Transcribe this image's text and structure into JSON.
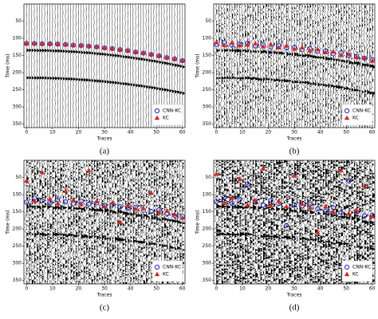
{
  "chart_data": [
    {
      "type": "scatter",
      "label": "(a)",
      "x_label": "Traces",
      "y_label": "Time (ms)",
      "xlim": [
        -1,
        61
      ],
      "ylim": [
        0,
        360
      ],
      "y_inverted": true,
      "xticks": [
        0,
        10,
        20,
        30,
        40,
        50,
        60
      ],
      "yticks": [
        50,
        100,
        150,
        200,
        250,
        300,
        350
      ],
      "legend": "lower right",
      "x": [
        0,
        3,
        6,
        9,
        12,
        15,
        18,
        21,
        24,
        27,
        30,
        33,
        36,
        39,
        42,
        45,
        48,
        51,
        54,
        57,
        60
      ],
      "series": [
        {
          "name": "CNN-KC",
          "color": "#2222cc",
          "marker": "circle",
          "values": [
            115,
            115,
            116,
            116,
            117,
            118,
            120,
            121,
            123,
            125,
            128,
            130,
            133,
            136,
            140,
            143,
            147,
            151,
            156,
            160,
            165
          ]
        },
        {
          "name": "KC",
          "color": "#dd2222",
          "marker": "triangle",
          "values": [
            115,
            115,
            116,
            116,
            117,
            118,
            120,
            121,
            123,
            125,
            128,
            130,
            133,
            136,
            140,
            143,
            147,
            151,
            156,
            160,
            165
          ]
        }
      ]
    },
    {
      "type": "scatter",
      "label": "(b)",
      "x_label": "Traces",
      "y_label": "Time (ms)",
      "xlim": [
        -1,
        61
      ],
      "ylim": [
        0,
        360
      ],
      "y_inverted": true,
      "xticks": [
        0,
        10,
        20,
        30,
        40,
        50,
        60
      ],
      "yticks": [
        50,
        100,
        150,
        200,
        250,
        300,
        350
      ],
      "legend": "lower right",
      "x": [
        0,
        3,
        6,
        9,
        12,
        15,
        18,
        21,
        24,
        27,
        30,
        33,
        36,
        39,
        42,
        45,
        48,
        51,
        54,
        57,
        60
      ],
      "series": [
        {
          "name": "CNN-KC",
          "color": "#2222cc",
          "marker": "circle",
          "values": [
            118,
            112,
            120,
            117,
            114,
            122,
            119,
            125,
            121,
            128,
            126,
            133,
            130,
            138,
            136,
            145,
            142,
            150,
            153,
            158,
            162
          ]
        },
        {
          "name": "KC",
          "color": "#dd2222",
          "marker": "triangle",
          "values": [
            112,
            120,
            113,
            121,
            119,
            115,
            124,
            118,
            127,
            122,
            131,
            127,
            136,
            132,
            141,
            139,
            149,
            146,
            155,
            157,
            166
          ]
        }
      ]
    },
    {
      "type": "scatter",
      "label": "(c)",
      "x_label": "Traces",
      "y_label": "Time (ms)",
      "xlim": [
        -1,
        61
      ],
      "ylim": [
        0,
        360
      ],
      "y_inverted": true,
      "xticks": [
        0,
        10,
        20,
        30,
        40,
        50,
        60
      ],
      "yticks": [
        50,
        100,
        150,
        200,
        250,
        300,
        350
      ],
      "legend": "lower right",
      "x": [
        0,
        3,
        6,
        9,
        12,
        15,
        18,
        21,
        24,
        27,
        30,
        33,
        36,
        39,
        42,
        45,
        48,
        51,
        54,
        57,
        60
      ],
      "series": [
        {
          "name": "CNN-KC",
          "color": "#2222cc",
          "marker": "circle",
          "values": [
            122,
            110,
            118,
            124,
            115,
            121,
            126,
            119,
            127,
            124,
            132,
            129,
            135,
            140,
            137,
            146,
            149,
            144,
            155,
            161,
            163
          ]
        },
        {
          "name": "KC",
          "color": "#dd2222",
          "marker": "triangle",
          "values": [
            60,
            118,
            35,
            112,
            126,
            90,
            116,
            128,
            30,
            120,
            135,
            124,
            180,
            131,
            142,
            140,
            95,
            152,
            148,
            158,
            168
          ]
        }
      ]
    },
    {
      "type": "scatter",
      "label": "(d)",
      "x_label": "Traces",
      "y_label": "Time (ms)",
      "xlim": [
        -1,
        61
      ],
      "ylim": [
        0,
        360
      ],
      "y_inverted": true,
      "xticks": [
        0,
        10,
        20,
        30,
        40,
        50,
        60
      ],
      "yticks": [
        50,
        100,
        150,
        200,
        250,
        300,
        350
      ],
      "legend": "lower right",
      "x": [
        0,
        3,
        6,
        9,
        12,
        15,
        18,
        21,
        24,
        27,
        30,
        33,
        36,
        39,
        42,
        45,
        48,
        51,
        54,
        57,
        60
      ],
      "series": [
        {
          "name": "CNN-KC",
          "color": "#2222cc",
          "marker": "circle",
          "values": [
            120,
            108,
            125,
            115,
            70,
            119,
            130,
            116,
            126,
            190,
            129,
            134,
            128,
            141,
            148,
            138,
            152,
            60,
            150,
            162,
            160
          ]
        },
        {
          "name": "KC",
          "color": "#dd2222",
          "marker": "triangle",
          "values": [
            40,
            125,
            110,
            55,
            130,
            117,
            25,
            132,
            119,
            135,
            45,
            127,
            138,
            210,
            135,
            150,
            30,
            155,
            145,
            75,
            164
          ]
        }
      ]
    }
  ]
}
